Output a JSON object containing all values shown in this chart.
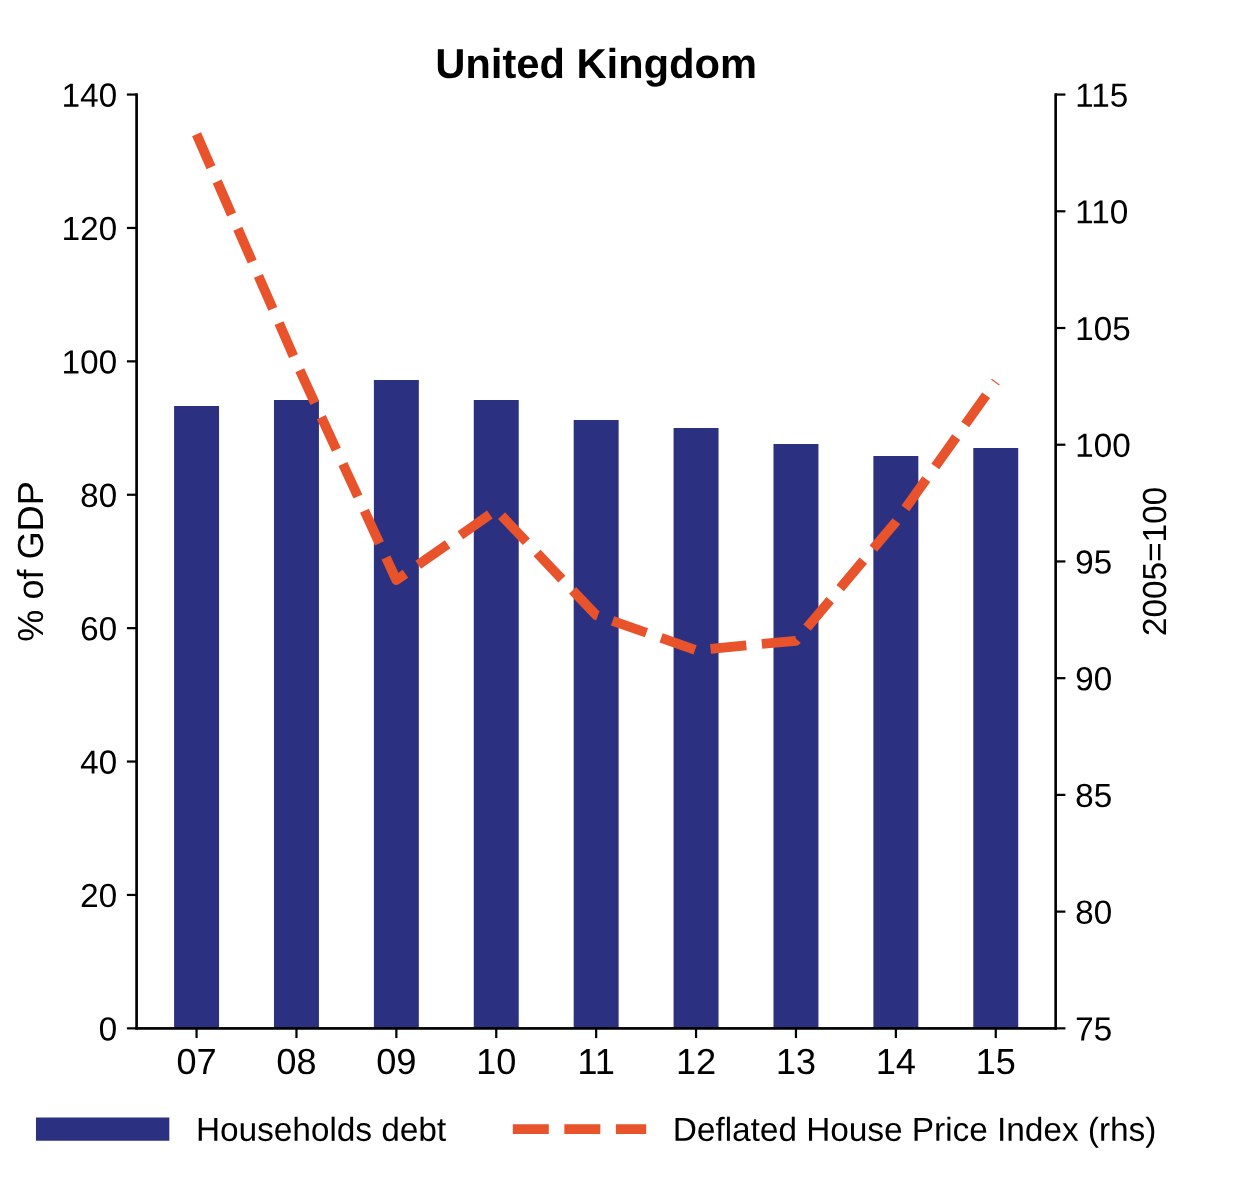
{
  "chart_data": {
    "type": "bar",
    "title": "United Kingdom",
    "ylabel": "% of GDP",
    "y2label": "2005=100",
    "categories": [
      "07",
      "08",
      "09",
      "10",
      "11",
      "12",
      "13",
      "14",
      "15"
    ],
    "series": [
      {
        "name": "Households debt",
        "color": "#2b3180",
        "values": [
          93.3,
          94.2,
          97.2,
          94.2,
          91.2,
          90,
          87.6,
          85.8,
          87
        ]
      },
      {
        "name": "Deflated House Price Index (rhs)",
        "type": "line",
        "axis": "y2",
        "color": "#e8532b",
        "line_style": "dashed",
        "values": [
          113.3,
          103.5,
          94.2,
          97.2,
          92.7,
          91.2,
          91.6,
          96.7,
          102.7
        ]
      }
    ],
    "ylim": [
      0,
      140
    ],
    "yticks": [
      0,
      20,
      40,
      60,
      80,
      100,
      120,
      140
    ],
    "y2lim": [
      75,
      115
    ],
    "y2ticks": [
      75,
      80,
      85,
      90,
      95,
      100,
      105,
      110,
      115
    ],
    "legend": "bottom",
    "grid": false
  }
}
